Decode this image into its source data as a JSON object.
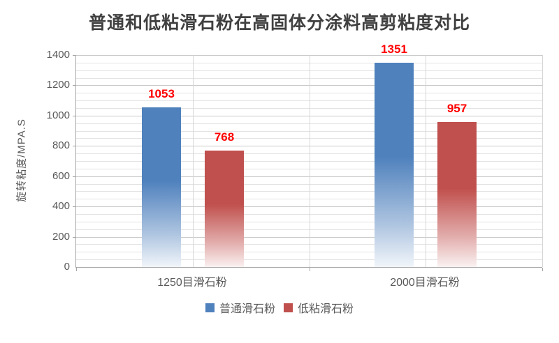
{
  "chart_data": {
    "type": "bar",
    "title": "普通和低粘滑石粉在高固体分涂料高剪粘度对比",
    "ylabel": "旋转粘度/MPA.S",
    "xlabel": "",
    "categories": [
      "1250目滑石粉",
      "2000目滑石粉"
    ],
    "series": [
      {
        "name": "普通滑石粉",
        "color": "#4F81BD",
        "values": [
          1053,
          1351
        ]
      },
      {
        "name": "低粘滑石粉",
        "color": "#C0504D",
        "values": [
          768,
          957
        ]
      }
    ],
    "ylim": [
      0,
      1400
    ],
    "yticks": [
      0,
      200,
      400,
      600,
      800,
      1000,
      1200,
      1400
    ],
    "minor_grid_step": 50,
    "grid": true,
    "legend_position": "bottom",
    "data_labels": true,
    "data_label_color": "#FF0000",
    "axis_text_color": "#595959",
    "axis_line_color": "#a6a6a6",
    "grid_color_major": "#c9c9c9",
    "grid_color_minor": "#e3e3e3",
    "grid_color_vertical": "#d6d6d6"
  }
}
